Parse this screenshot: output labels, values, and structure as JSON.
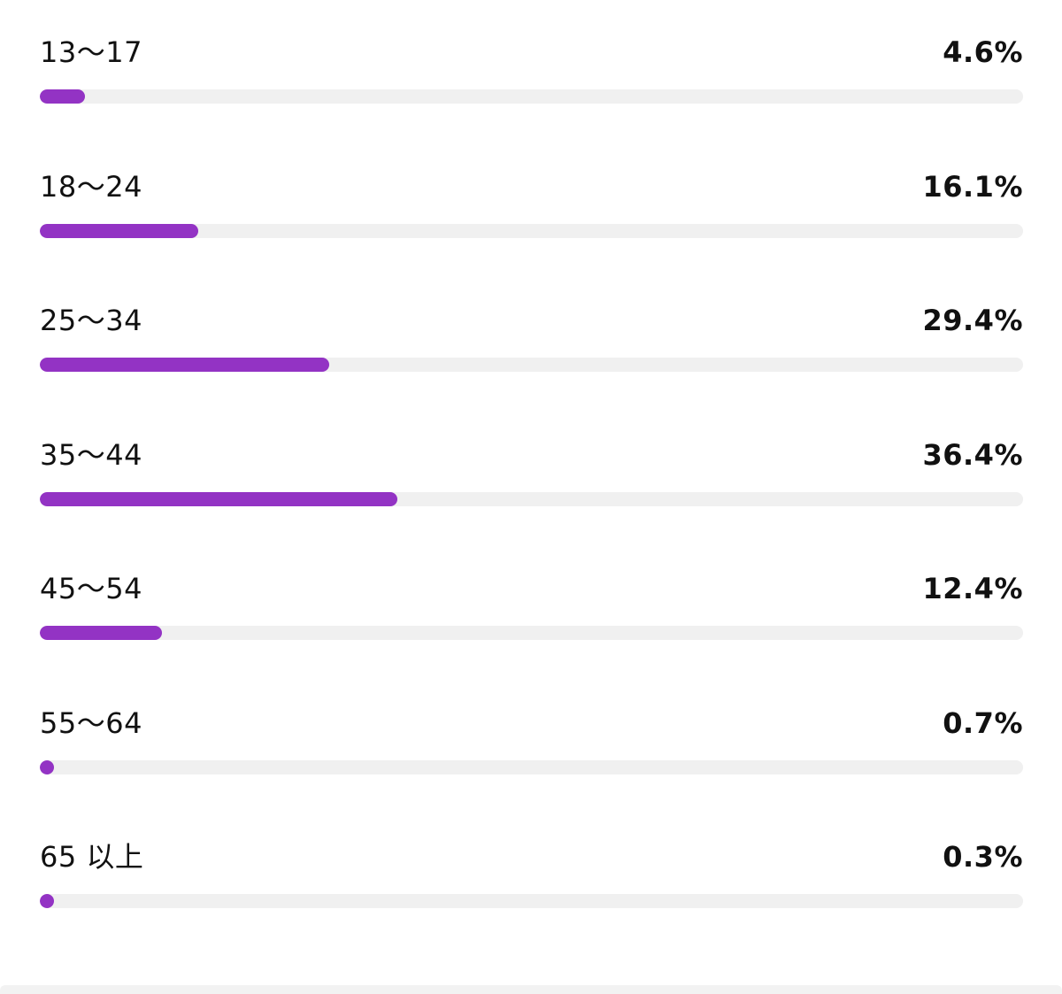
{
  "colors": {
    "bar_fill": "#9333c4",
    "bar_track": "#f0f0f0",
    "text": "#111111"
  },
  "chart_data": {
    "type": "bar",
    "orientation": "horizontal",
    "categories": [
      "13～17",
      "18～24",
      "25～34",
      "35～44",
      "45～54",
      "55～64",
      "65 以上"
    ],
    "values": [
      4.6,
      16.1,
      29.4,
      36.4,
      12.4,
      0.7,
      0.3
    ],
    "value_labels": [
      "4.6%",
      "16.1%",
      "29.4%",
      "36.4%",
      "12.4%",
      "0.7%",
      "0.3%"
    ],
    "xlim": [
      0,
      100
    ],
    "grid": false,
    "legend": "none"
  }
}
